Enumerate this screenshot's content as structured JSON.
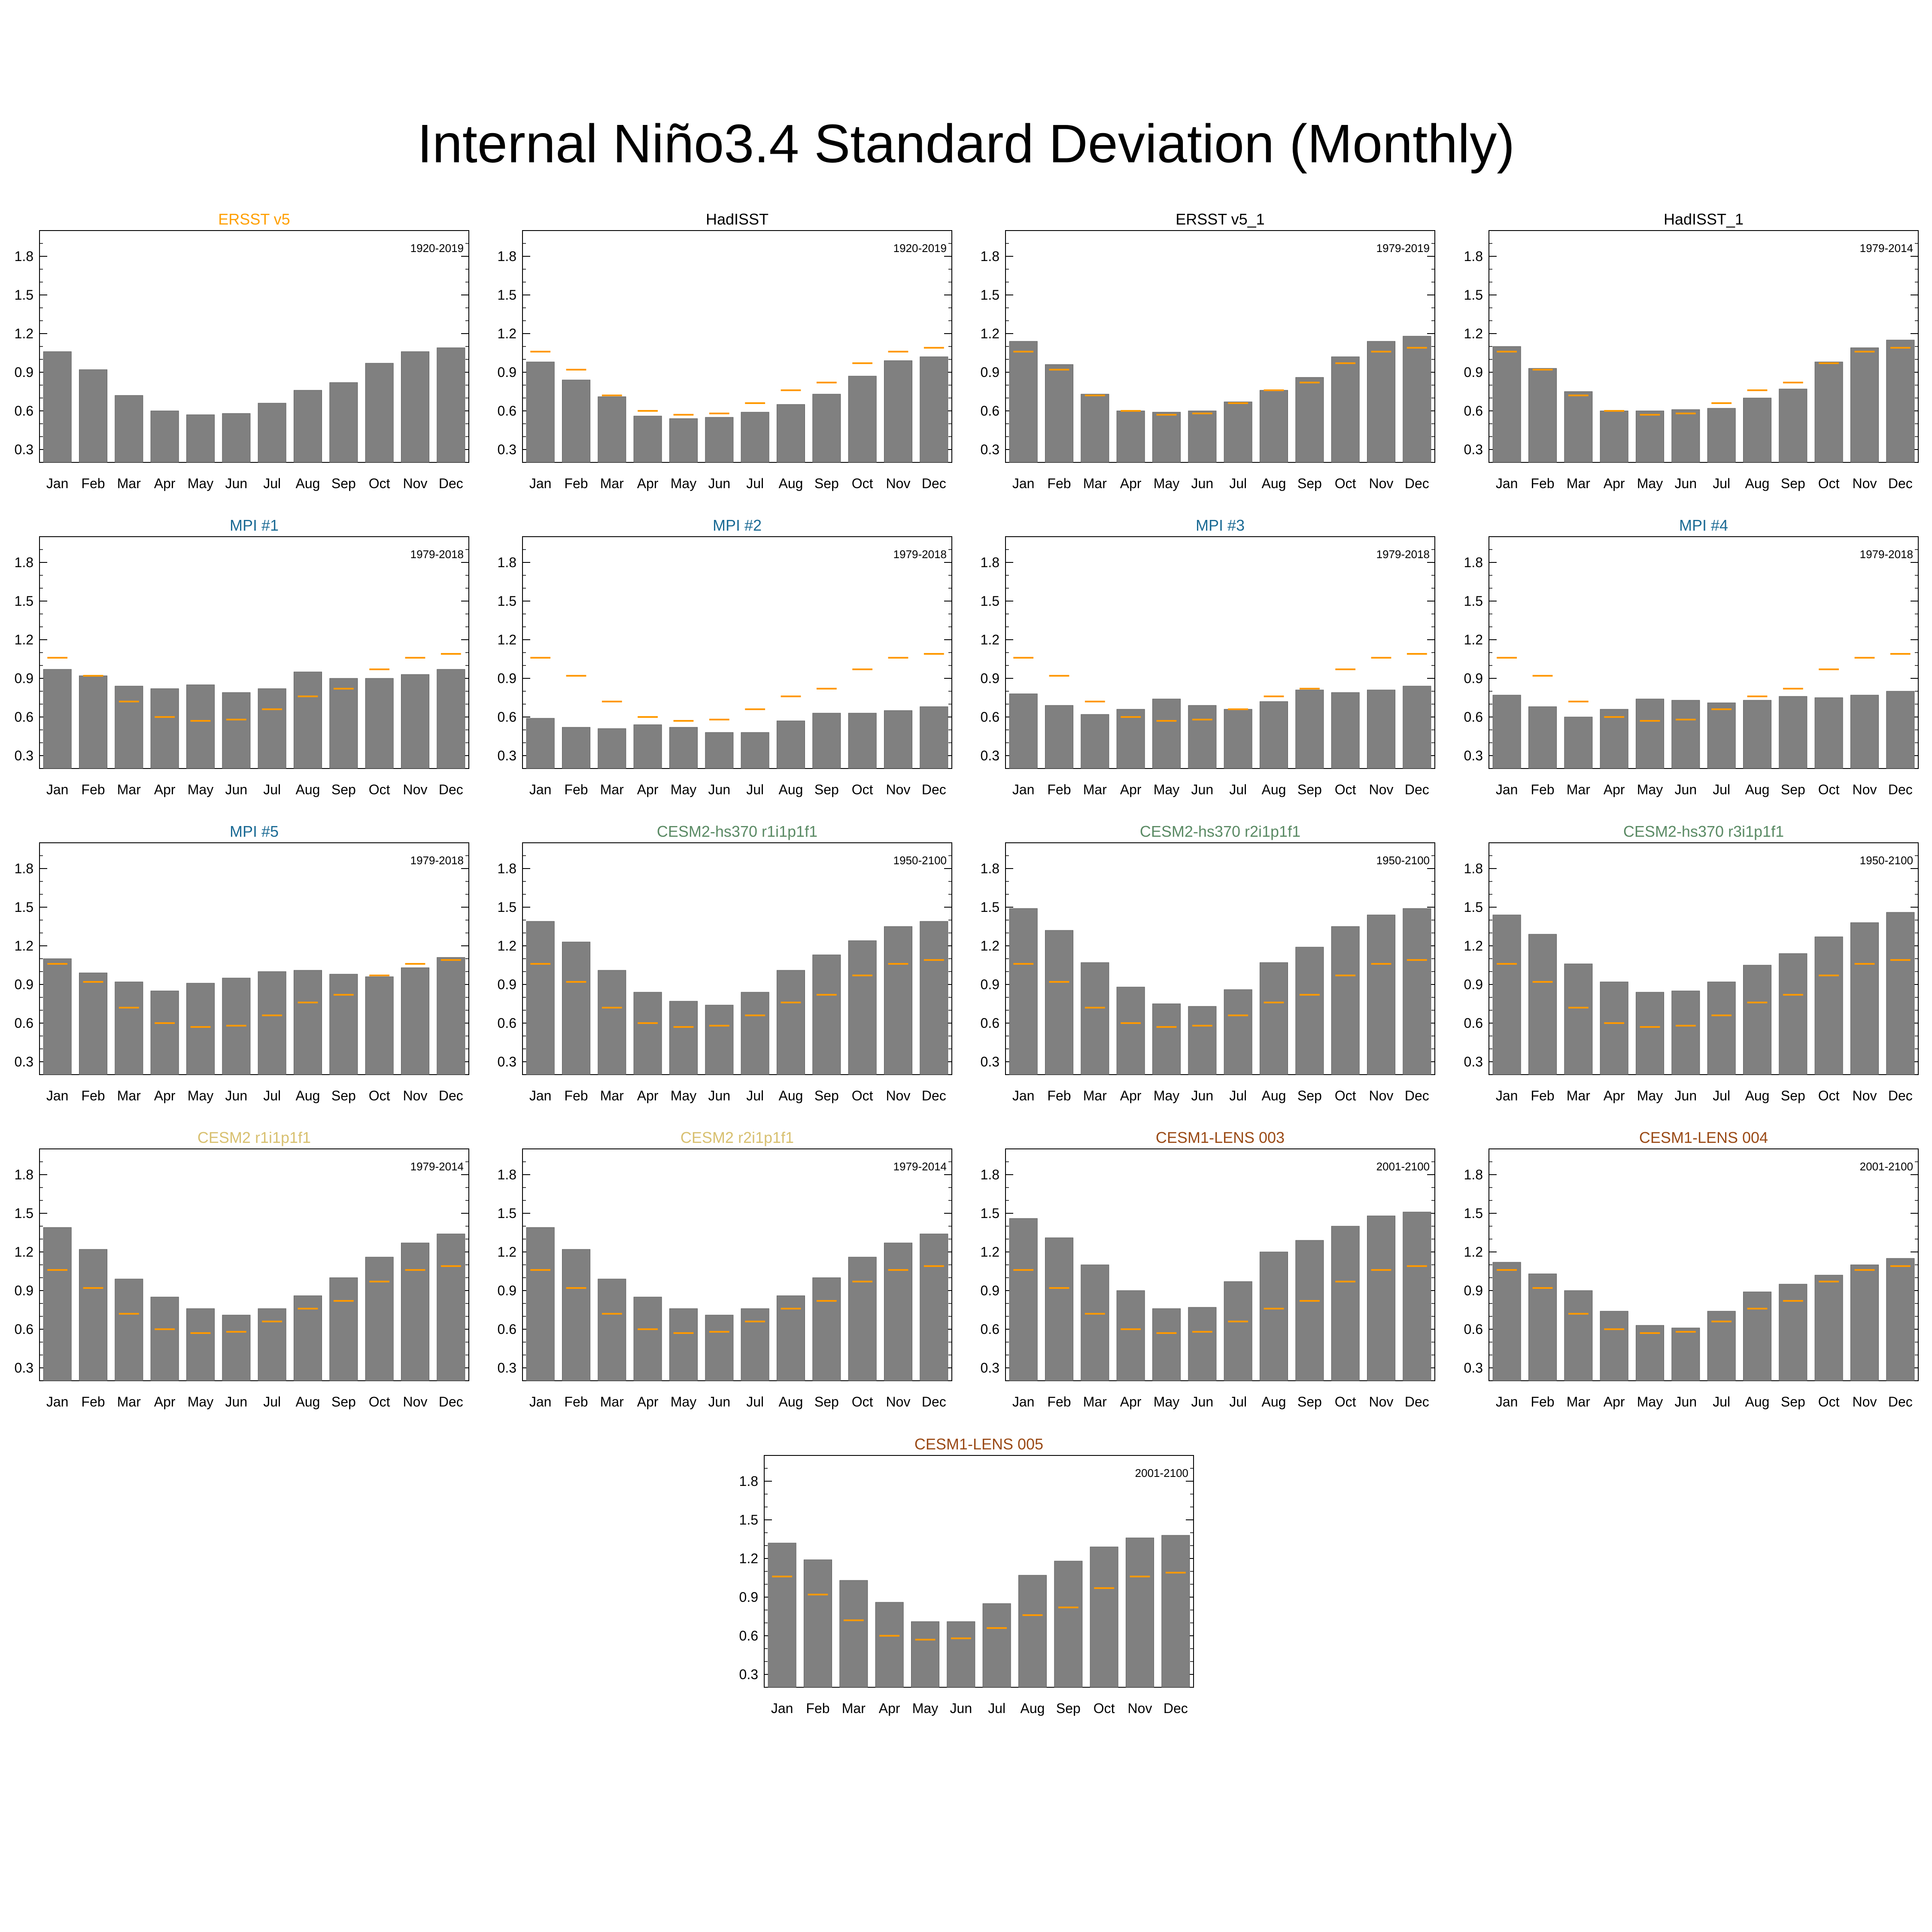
{
  "title": "Internal Niño3.4 Standard Deviation (Monthly)",
  "colors": {
    "bar": "#808080",
    "bar_edge": "#5a5a5a",
    "reference_line": "#ff9900",
    "frame": "#000000"
  },
  "chart_data": [
    {
      "type": "bar",
      "title": "ERSST v5",
      "title_color": "#ff9f00",
      "period": "1920-2019",
      "categories": [
        "Jan",
        "Feb",
        "Mar",
        "Apr",
        "May",
        "Jun",
        "Jul",
        "Aug",
        "Sep",
        "Oct",
        "Nov",
        "Dec"
      ],
      "values": [
        1.06,
        0.92,
        0.72,
        0.6,
        0.57,
        0.58,
        0.66,
        0.76,
        0.82,
        0.97,
        1.06,
        1.09
      ],
      "reference": null,
      "ylim": [
        0.2,
        2.0
      ],
      "yticks": [
        "0.3",
        "0.6",
        "0.9",
        "1.2",
        "1.5",
        "1.8"
      ]
    },
    {
      "type": "bar",
      "title": "HadISST",
      "title_color": "#000000",
      "period": "1920-2019",
      "categories": [
        "Jan",
        "Feb",
        "Mar",
        "Apr",
        "May",
        "Jun",
        "Jul",
        "Aug",
        "Sep",
        "Oct",
        "Nov",
        "Dec"
      ],
      "values": [
        0.98,
        0.84,
        0.71,
        0.56,
        0.54,
        0.55,
        0.59,
        0.65,
        0.73,
        0.87,
        0.99,
        1.02
      ],
      "reference": [
        1.06,
        0.92,
        0.72,
        0.6,
        0.57,
        0.58,
        0.66,
        0.76,
        0.82,
        0.97,
        1.06,
        1.09
      ],
      "ylim": [
        0.2,
        2.0
      ],
      "yticks": [
        "0.3",
        "0.6",
        "0.9",
        "1.2",
        "1.5",
        "1.8"
      ]
    },
    {
      "type": "bar",
      "title": "ERSST v5_1",
      "title_color": "#000000",
      "period": "1979-2019",
      "categories": [
        "Jan",
        "Feb",
        "Mar",
        "Apr",
        "May",
        "Jun",
        "Jul",
        "Aug",
        "Sep",
        "Oct",
        "Nov",
        "Dec"
      ],
      "values": [
        1.14,
        0.96,
        0.73,
        0.6,
        0.59,
        0.6,
        0.67,
        0.76,
        0.86,
        1.02,
        1.14,
        1.18
      ],
      "reference": [
        1.06,
        0.92,
        0.72,
        0.6,
        0.57,
        0.58,
        0.66,
        0.76,
        0.82,
        0.97,
        1.06,
        1.09
      ],
      "ylim": [
        0.2,
        2.0
      ],
      "yticks": [
        "0.3",
        "0.6",
        "0.9",
        "1.2",
        "1.5",
        "1.8"
      ]
    },
    {
      "type": "bar",
      "title": "HadISST_1",
      "title_color": "#000000",
      "period": "1979-2014",
      "categories": [
        "Jan",
        "Feb",
        "Mar",
        "Apr",
        "May",
        "Jun",
        "Jul",
        "Aug",
        "Sep",
        "Oct",
        "Nov",
        "Dec"
      ],
      "values": [
        1.1,
        0.93,
        0.75,
        0.6,
        0.6,
        0.61,
        0.62,
        0.7,
        0.77,
        0.98,
        1.09,
        1.15
      ],
      "reference": [
        1.06,
        0.92,
        0.72,
        0.6,
        0.57,
        0.58,
        0.66,
        0.76,
        0.82,
        0.97,
        1.06,
        1.09
      ],
      "ylim": [
        0.2,
        2.0
      ],
      "yticks": [
        "0.3",
        "0.6",
        "0.9",
        "1.2",
        "1.5",
        "1.8"
      ]
    },
    {
      "type": "bar",
      "title": "MPI #1",
      "title_color": "#1a6a94",
      "period": "1979-2018",
      "categories": [
        "Jan",
        "Feb",
        "Mar",
        "Apr",
        "May",
        "Jun",
        "Jul",
        "Aug",
        "Sep",
        "Oct",
        "Nov",
        "Dec"
      ],
      "values": [
        0.97,
        0.92,
        0.84,
        0.82,
        0.85,
        0.79,
        0.82,
        0.95,
        0.9,
        0.9,
        0.93,
        0.97
      ],
      "reference": [
        1.06,
        0.92,
        0.72,
        0.6,
        0.57,
        0.58,
        0.66,
        0.76,
        0.82,
        0.97,
        1.06,
        1.09
      ],
      "ylim": [
        0.2,
        2.0
      ],
      "yticks": [
        "0.3",
        "0.6",
        "0.9",
        "1.2",
        "1.5",
        "1.8"
      ]
    },
    {
      "type": "bar",
      "title": "MPI #2",
      "title_color": "#1a6a94",
      "period": "1979-2018",
      "categories": [
        "Jan",
        "Feb",
        "Mar",
        "Apr",
        "May",
        "Jun",
        "Jul",
        "Aug",
        "Sep",
        "Oct",
        "Nov",
        "Dec"
      ],
      "values": [
        0.59,
        0.52,
        0.51,
        0.54,
        0.52,
        0.48,
        0.48,
        0.57,
        0.63,
        0.63,
        0.65,
        0.68
      ],
      "reference": [
        1.06,
        0.92,
        0.72,
        0.6,
        0.57,
        0.58,
        0.66,
        0.76,
        0.82,
        0.97,
        1.06,
        1.09
      ],
      "ylim": [
        0.2,
        2.0
      ],
      "yticks": [
        "0.3",
        "0.6",
        "0.9",
        "1.2",
        "1.5",
        "1.8"
      ]
    },
    {
      "type": "bar",
      "title": "MPI #3",
      "title_color": "#1a6a94",
      "period": "1979-2018",
      "categories": [
        "Jan",
        "Feb",
        "Mar",
        "Apr",
        "May",
        "Jun",
        "Jul",
        "Aug",
        "Sep",
        "Oct",
        "Nov",
        "Dec"
      ],
      "values": [
        0.78,
        0.69,
        0.62,
        0.66,
        0.74,
        0.69,
        0.66,
        0.72,
        0.81,
        0.79,
        0.81,
        0.84
      ],
      "reference": [
        1.06,
        0.92,
        0.72,
        0.6,
        0.57,
        0.58,
        0.66,
        0.76,
        0.82,
        0.97,
        1.06,
        1.09
      ],
      "ylim": [
        0.2,
        2.0
      ],
      "yticks": [
        "0.3",
        "0.6",
        "0.9",
        "1.2",
        "1.5",
        "1.8"
      ]
    },
    {
      "type": "bar",
      "title": "MPI #4",
      "title_color": "#1a6a94",
      "period": "1979-2018",
      "categories": [
        "Jan",
        "Feb",
        "Mar",
        "Apr",
        "May",
        "Jun",
        "Jul",
        "Aug",
        "Sep",
        "Oct",
        "Nov",
        "Dec"
      ],
      "values": [
        0.77,
        0.68,
        0.6,
        0.66,
        0.74,
        0.73,
        0.71,
        0.73,
        0.76,
        0.75,
        0.77,
        0.8
      ],
      "reference": [
        1.06,
        0.92,
        0.72,
        0.6,
        0.57,
        0.58,
        0.66,
        0.76,
        0.82,
        0.97,
        1.06,
        1.09
      ],
      "ylim": [
        0.2,
        2.0
      ],
      "yticks": [
        "0.3",
        "0.6",
        "0.9",
        "1.2",
        "1.5",
        "1.8"
      ]
    },
    {
      "type": "bar",
      "title": "MPI #5",
      "title_color": "#1a6a94",
      "period": "1979-2018",
      "categories": [
        "Jan",
        "Feb",
        "Mar",
        "Apr",
        "May",
        "Jun",
        "Jul",
        "Aug",
        "Sep",
        "Oct",
        "Nov",
        "Dec"
      ],
      "values": [
        1.1,
        0.99,
        0.92,
        0.85,
        0.91,
        0.95,
        1.0,
        1.01,
        0.98,
        0.96,
        1.03,
        1.11
      ],
      "reference": [
        1.06,
        0.92,
        0.72,
        0.6,
        0.57,
        0.58,
        0.66,
        0.76,
        0.82,
        0.97,
        1.06,
        1.09
      ],
      "ylim": [
        0.2,
        2.0
      ],
      "yticks": [
        "0.3",
        "0.6",
        "0.9",
        "1.2",
        "1.5",
        "1.8"
      ]
    },
    {
      "type": "bar",
      "title": "CESM2-hs370 r1i1p1f1",
      "title_color": "#5a8a64",
      "period": "1950-2100",
      "categories": [
        "Jan",
        "Feb",
        "Mar",
        "Apr",
        "May",
        "Jun",
        "Jul",
        "Aug",
        "Sep",
        "Oct",
        "Nov",
        "Dec"
      ],
      "values": [
        1.39,
        1.23,
        1.01,
        0.84,
        0.77,
        0.74,
        0.84,
        1.01,
        1.13,
        1.24,
        1.35,
        1.39
      ],
      "reference": [
        1.06,
        0.92,
        0.72,
        0.6,
        0.57,
        0.58,
        0.66,
        0.76,
        0.82,
        0.97,
        1.06,
        1.09
      ],
      "ylim": [
        0.2,
        2.0
      ],
      "yticks": [
        "0.3",
        "0.6",
        "0.9",
        "1.2",
        "1.5",
        "1.8"
      ]
    },
    {
      "type": "bar",
      "title": "CESM2-hs370 r2i1p1f1",
      "title_color": "#5a8a64",
      "period": "1950-2100",
      "categories": [
        "Jan",
        "Feb",
        "Mar",
        "Apr",
        "May",
        "Jun",
        "Jul",
        "Aug",
        "Sep",
        "Oct",
        "Nov",
        "Dec"
      ],
      "values": [
        1.49,
        1.32,
        1.07,
        0.88,
        0.75,
        0.73,
        0.86,
        1.07,
        1.19,
        1.35,
        1.44,
        1.49
      ],
      "reference": [
        1.06,
        0.92,
        0.72,
        0.6,
        0.57,
        0.58,
        0.66,
        0.76,
        0.82,
        0.97,
        1.06,
        1.09
      ],
      "ylim": [
        0.2,
        2.0
      ],
      "yticks": [
        "0.3",
        "0.6",
        "0.9",
        "1.2",
        "1.5",
        "1.8"
      ]
    },
    {
      "type": "bar",
      "title": "CESM2-hs370 r3i1p1f1",
      "title_color": "#5a8a64",
      "period": "1950-2100",
      "categories": [
        "Jan",
        "Feb",
        "Mar",
        "Apr",
        "May",
        "Jun",
        "Jul",
        "Aug",
        "Sep",
        "Oct",
        "Nov",
        "Dec"
      ],
      "values": [
        1.44,
        1.29,
        1.06,
        0.92,
        0.84,
        0.85,
        0.92,
        1.05,
        1.14,
        1.27,
        1.38,
        1.46
      ],
      "reference": [
        1.06,
        0.92,
        0.72,
        0.6,
        0.57,
        0.58,
        0.66,
        0.76,
        0.82,
        0.97,
        1.06,
        1.09
      ],
      "ylim": [
        0.2,
        2.0
      ],
      "yticks": [
        "0.3",
        "0.6",
        "0.9",
        "1.2",
        "1.5",
        "1.8"
      ]
    },
    {
      "type": "bar",
      "title": "CESM2 r1i1p1f1",
      "title_color": "#d8c070",
      "period": "1979-2014",
      "categories": [
        "Jan",
        "Feb",
        "Mar",
        "Apr",
        "May",
        "Jun",
        "Jul",
        "Aug",
        "Sep",
        "Oct",
        "Nov",
        "Dec"
      ],
      "values": [
        1.39,
        1.22,
        0.99,
        0.85,
        0.76,
        0.71,
        0.76,
        0.86,
        1.0,
        1.16,
        1.27,
        1.34
      ],
      "reference": [
        1.06,
        0.92,
        0.72,
        0.6,
        0.57,
        0.58,
        0.66,
        0.76,
        0.82,
        0.97,
        1.06,
        1.09
      ],
      "ylim": [
        0.2,
        2.0
      ],
      "yticks": [
        "0.3",
        "0.6",
        "0.9",
        "1.2",
        "1.5",
        "1.8"
      ]
    },
    {
      "type": "bar",
      "title": "CESM2 r2i1p1f1",
      "title_color": "#d8c070",
      "period": "1979-2014",
      "categories": [
        "Jan",
        "Feb",
        "Mar",
        "Apr",
        "May",
        "Jun",
        "Jul",
        "Aug",
        "Sep",
        "Oct",
        "Nov",
        "Dec"
      ],
      "values": [
        1.39,
        1.22,
        0.99,
        0.85,
        0.76,
        0.71,
        0.76,
        0.86,
        1.0,
        1.16,
        1.27,
        1.34
      ],
      "reference": [
        1.06,
        0.92,
        0.72,
        0.6,
        0.57,
        0.58,
        0.66,
        0.76,
        0.82,
        0.97,
        1.06,
        1.09
      ],
      "ylim": [
        0.2,
        2.0
      ],
      "yticks": [
        "0.3",
        "0.6",
        "0.9",
        "1.2",
        "1.5",
        "1.8"
      ]
    },
    {
      "type": "bar",
      "title": "CESM1-LENS 003",
      "title_color": "#9a4a16",
      "period": "2001-2100",
      "categories": [
        "Jan",
        "Feb",
        "Mar",
        "Apr",
        "May",
        "Jun",
        "Jul",
        "Aug",
        "Sep",
        "Oct",
        "Nov",
        "Dec"
      ],
      "values": [
        1.46,
        1.31,
        1.1,
        0.9,
        0.76,
        0.77,
        0.97,
        1.2,
        1.29,
        1.4,
        1.48,
        1.51
      ],
      "reference": [
        1.06,
        0.92,
        0.72,
        0.6,
        0.57,
        0.58,
        0.66,
        0.76,
        0.82,
        0.97,
        1.06,
        1.09
      ],
      "ylim": [
        0.2,
        2.0
      ],
      "yticks": [
        "0.3",
        "0.6",
        "0.9",
        "1.2",
        "1.5",
        "1.8"
      ]
    },
    {
      "type": "bar",
      "title": "CESM1-LENS 004",
      "title_color": "#9a4a16",
      "period": "2001-2100",
      "categories": [
        "Jan",
        "Feb",
        "Mar",
        "Apr",
        "May",
        "Jun",
        "Jul",
        "Aug",
        "Sep",
        "Oct",
        "Nov",
        "Dec"
      ],
      "values": [
        1.12,
        1.03,
        0.9,
        0.74,
        0.63,
        0.61,
        0.74,
        0.89,
        0.95,
        1.02,
        1.1,
        1.15
      ],
      "reference": [
        1.06,
        0.92,
        0.72,
        0.6,
        0.57,
        0.58,
        0.66,
        0.76,
        0.82,
        0.97,
        1.06,
        1.09
      ],
      "ylim": [
        0.2,
        2.0
      ],
      "yticks": [
        "0.3",
        "0.6",
        "0.9",
        "1.2",
        "1.5",
        "1.8"
      ]
    },
    {
      "type": "bar",
      "title": "CESM1-LENS 005",
      "title_color": "#9a4a16",
      "period": "2001-2100",
      "categories": [
        "Jan",
        "Feb",
        "Mar",
        "Apr",
        "May",
        "Jun",
        "Jul",
        "Aug",
        "Sep",
        "Oct",
        "Nov",
        "Dec"
      ],
      "values": [
        1.32,
        1.19,
        1.03,
        0.86,
        0.71,
        0.71,
        0.85,
        1.07,
        1.18,
        1.29,
        1.36,
        1.38
      ],
      "reference": [
        1.06,
        0.92,
        0.72,
        0.6,
        0.57,
        0.58,
        0.66,
        0.76,
        0.82,
        0.97,
        1.06,
        1.09
      ],
      "ylim": [
        0.2,
        2.0
      ],
      "yticks": [
        "0.3",
        "0.6",
        "0.9",
        "1.2",
        "1.5",
        "1.8"
      ]
    }
  ]
}
